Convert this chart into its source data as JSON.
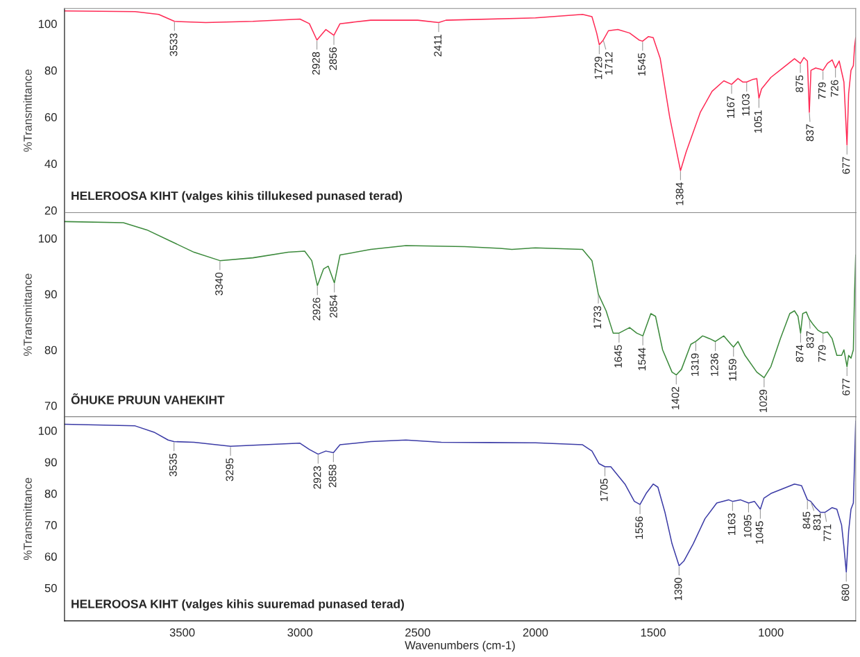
{
  "chart_data": [
    {
      "type": "line",
      "title": "HELEROOSA KIHT (valges kihis tillukesed punased terad)",
      "ylabel": "%Transmittance",
      "xlim": [
        4000,
        640
      ],
      "xticks": [
        3500,
        3000,
        2500,
        2000,
        1500,
        1000
      ],
      "ylim": [
        19,
        106.5
      ],
      "yticks": [
        20,
        40,
        60,
        80,
        100
      ],
      "tick_labels": "y",
      "grid": false,
      "x": [
        4000,
        3700,
        3600,
        3533,
        3400,
        3200,
        3000,
        2960,
        2928,
        2890,
        2856,
        2830,
        2700,
        2500,
        2411,
        2380,
        2000,
        1800,
        1760,
        1740,
        1729,
        1712,
        1690,
        1650,
        1600,
        1560,
        1545,
        1520,
        1500,
        1470,
        1430,
        1400,
        1384,
        1360,
        1300,
        1250,
        1200,
        1167,
        1140,
        1120,
        1103,
        1080,
        1060,
        1051,
        1040,
        1000,
        950,
        900,
        875,
        860,
        845,
        837,
        830,
        810,
        790,
        779,
        760,
        740,
        726,
        710,
        690,
        677,
        670,
        660,
        650,
        645,
        640
      ],
      "series": [
        {
          "color": "#ff2a55",
          "values": [
            105.5,
            105.2,
            104,
            101,
            100.5,
            101,
            102,
            100,
            93,
            97.5,
            95,
            100,
            101.5,
            101.5,
            100.5,
            101.5,
            102.5,
            104,
            103,
            96,
            91,
            93,
            97,
            97.5,
            96,
            93,
            92.5,
            94.5,
            94,
            85,
            60,
            45,
            37,
            45,
            62,
            71,
            75.5,
            74,
            76.5,
            75,
            75,
            76,
            76.5,
            68,
            72,
            77,
            81,
            85,
            83,
            85.5,
            84,
            62,
            80,
            81,
            80.5,
            80,
            83,
            84.5,
            81,
            84,
            75,
            48,
            70,
            80,
            82,
            90,
            94
          ]
        }
      ],
      "annotations": [
        {
          "text": "3533",
          "x": 3533,
          "y": 101
        },
        {
          "text": "2928",
          "x": 2928,
          "y": 93
        },
        {
          "text": "2856",
          "x": 2856,
          "y": 95
        },
        {
          "text": "2411",
          "x": 2411,
          "y": 100.5
        },
        {
          "text": "1729",
          "x": 1729,
          "y": 91
        },
        {
          "text": "1712",
          "x": 1712,
          "y": 93
        },
        {
          "text": "1545",
          "x": 1545,
          "y": 92.5
        },
        {
          "text": "1384",
          "x": 1384,
          "y": 37
        },
        {
          "text": "1167",
          "x": 1167,
          "y": 74
        },
        {
          "text": "1103",
          "x": 1103,
          "y": 75
        },
        {
          "text": "1051",
          "x": 1051,
          "y": 68
        },
        {
          "text": "875",
          "x": 875,
          "y": 83
        },
        {
          "text": "837",
          "x": 837,
          "y": 62
        },
        {
          "text": "779",
          "x": 779,
          "y": 80
        },
        {
          "text": "726",
          "x": 726,
          "y": 81
        },
        {
          "text": "677",
          "x": 677,
          "y": 48
        }
      ]
    },
    {
      "type": "line",
      "title": "ÕHUKE PRUUN VAHEKIHT",
      "ylabel": "%Transmittance",
      "xlim": [
        4000,
        640
      ],
      "xticks": [
        3500,
        3000,
        2500,
        2000,
        1500,
        1000
      ],
      "ylim": [
        68,
        104.6
      ],
      "yticks": [
        70,
        80,
        90,
        100
      ],
      "tick_labels": "y",
      "grid": false,
      "x": [
        4000,
        3750,
        3650,
        3550,
        3450,
        3340,
        3200,
        3050,
        2980,
        2950,
        2926,
        2900,
        2880,
        2854,
        2830,
        2700,
        2550,
        2300,
        2150,
        2100,
        2000,
        1800,
        1760,
        1733,
        1700,
        1670,
        1645,
        1600,
        1570,
        1544,
        1510,
        1490,
        1460,
        1420,
        1402,
        1380,
        1340,
        1319,
        1290,
        1260,
        1236,
        1200,
        1170,
        1159,
        1140,
        1110,
        1060,
        1029,
        1000,
        960,
        920,
        900,
        885,
        874,
        865,
        850,
        837,
        820,
        800,
        779,
        760,
        740,
        720,
        700,
        690,
        677,
        670,
        660,
        650,
        645,
        640
      ],
      "series": [
        {
          "color": "#3c8a3c",
          "values": [
            103,
            102.8,
            101.5,
            99.5,
            97.5,
            96,
            96.5,
            97.5,
            97.7,
            96,
            91.5,
            94.5,
            95,
            92,
            97,
            98,
            98.7,
            98.5,
            98.2,
            98,
            98.3,
            98,
            96,
            90,
            87,
            83,
            83,
            84,
            83,
            82.5,
            86.5,
            86,
            80,
            76,
            75.5,
            76.5,
            81,
            81.5,
            82.5,
            82,
            81.5,
            82.5,
            81,
            80.5,
            81.5,
            79,
            76,
            75,
            77,
            82,
            86.5,
            87,
            86,
            83,
            86.5,
            86.8,
            85.5,
            84.5,
            83.5,
            83,
            83.2,
            82,
            79,
            79,
            80,
            77,
            79,
            78.5,
            80,
            90,
            97
          ]
        }
      ],
      "annotations": [
        {
          "text": "3340",
          "x": 3340,
          "y": 96
        },
        {
          "text": "2926",
          "x": 2926,
          "y": 91.5
        },
        {
          "text": "2854",
          "x": 2854,
          "y": 92
        },
        {
          "text": "1733",
          "x": 1733,
          "y": 90
        },
        {
          "text": "1645",
          "x": 1645,
          "y": 83
        },
        {
          "text": "1544",
          "x": 1544,
          "y": 82.5
        },
        {
          "text": "1402",
          "x": 1402,
          "y": 75.5
        },
        {
          "text": "1319",
          "x": 1319,
          "y": 81.5
        },
        {
          "text": "1236",
          "x": 1236,
          "y": 81.5
        },
        {
          "text": "1159",
          "x": 1159,
          "y": 80.5
        },
        {
          "text": "1029",
          "x": 1029,
          "y": 75
        },
        {
          "text": "874",
          "x": 874,
          "y": 83
        },
        {
          "text": "837",
          "x": 837,
          "y": 85.5
        },
        {
          "text": "779",
          "x": 779,
          "y": 83
        },
        {
          "text": "677",
          "x": 677,
          "y": 77
        }
      ]
    },
    {
      "type": "line",
      "title": "HELEROOSA KIHT (valges kihis suuremad punased terad)",
      "ylabel": "%Transmittance",
      "xlabel": "Wavenumbers (cm-1)",
      "xlim": [
        4000,
        640
      ],
      "xticks": [
        3500,
        3000,
        2500,
        2000,
        1500,
        1000
      ],
      "ylim": [
        39.5,
        104.4
      ],
      "yticks": [
        50,
        60,
        70,
        80,
        90,
        100
      ],
      "grid": false,
      "x": [
        4000,
        3700,
        3620,
        3560,
        3535,
        3450,
        3295,
        3100,
        3000,
        2960,
        2923,
        2890,
        2858,
        2830,
        2700,
        2550,
        2400,
        2200,
        2000,
        1800,
        1760,
        1730,
        1705,
        1680,
        1620,
        1580,
        1556,
        1530,
        1500,
        1480,
        1450,
        1420,
        1390,
        1370,
        1330,
        1280,
        1230,
        1180,
        1163,
        1130,
        1095,
        1070,
        1045,
        1030,
        1000,
        950,
        900,
        870,
        845,
        831,
        810,
        790,
        771,
        740,
        720,
        700,
        690,
        680,
        670,
        660,
        650,
        643,
        640
      ],
      "series": [
        {
          "color": "#3b3ba6",
          "values": [
            102,
            101.5,
            99.5,
            97,
            96.5,
            96.3,
            95,
            95.7,
            96,
            94,
            92.5,
            93.5,
            93,
            95.5,
            96.5,
            97,
            96.3,
            96.2,
            96.1,
            95.5,
            93.5,
            89.5,
            88.5,
            88.5,
            83,
            77.5,
            76.5,
            80,
            83,
            82,
            74,
            64,
            57,
            58.5,
            64,
            72,
            77,
            78,
            77.5,
            78,
            77,
            77.5,
            75,
            78.5,
            80,
            81.5,
            83,
            82.5,
            78,
            77.5,
            75.5,
            74,
            74,
            75.5,
            75,
            70,
            63,
            55,
            68,
            75,
            77,
            95,
            103
          ]
        }
      ],
      "annotations": [
        {
          "text": "3535",
          "x": 3535,
          "y": 96.5
        },
        {
          "text": "3295",
          "x": 3295,
          "y": 95
        },
        {
          "text": "2923",
          "x": 2923,
          "y": 92.5
        },
        {
          "text": "2858",
          "x": 2858,
          "y": 93
        },
        {
          "text": "1705",
          "x": 1705,
          "y": 88.5
        },
        {
          "text": "1556",
          "x": 1556,
          "y": 76.5
        },
        {
          "text": "1390",
          "x": 1390,
          "y": 57
        },
        {
          "text": "1163",
          "x": 1163,
          "y": 77.5
        },
        {
          "text": "1095",
          "x": 1095,
          "y": 77
        },
        {
          "text": "1045",
          "x": 1045,
          "y": 75
        },
        {
          "text": "845",
          "x": 845,
          "y": 78
        },
        {
          "text": "831",
          "x": 831,
          "y": 77.5
        },
        {
          "text": "771",
          "x": 771,
          "y": 74
        },
        {
          "text": "680",
          "x": 680,
          "y": 55
        }
      ]
    }
  ]
}
